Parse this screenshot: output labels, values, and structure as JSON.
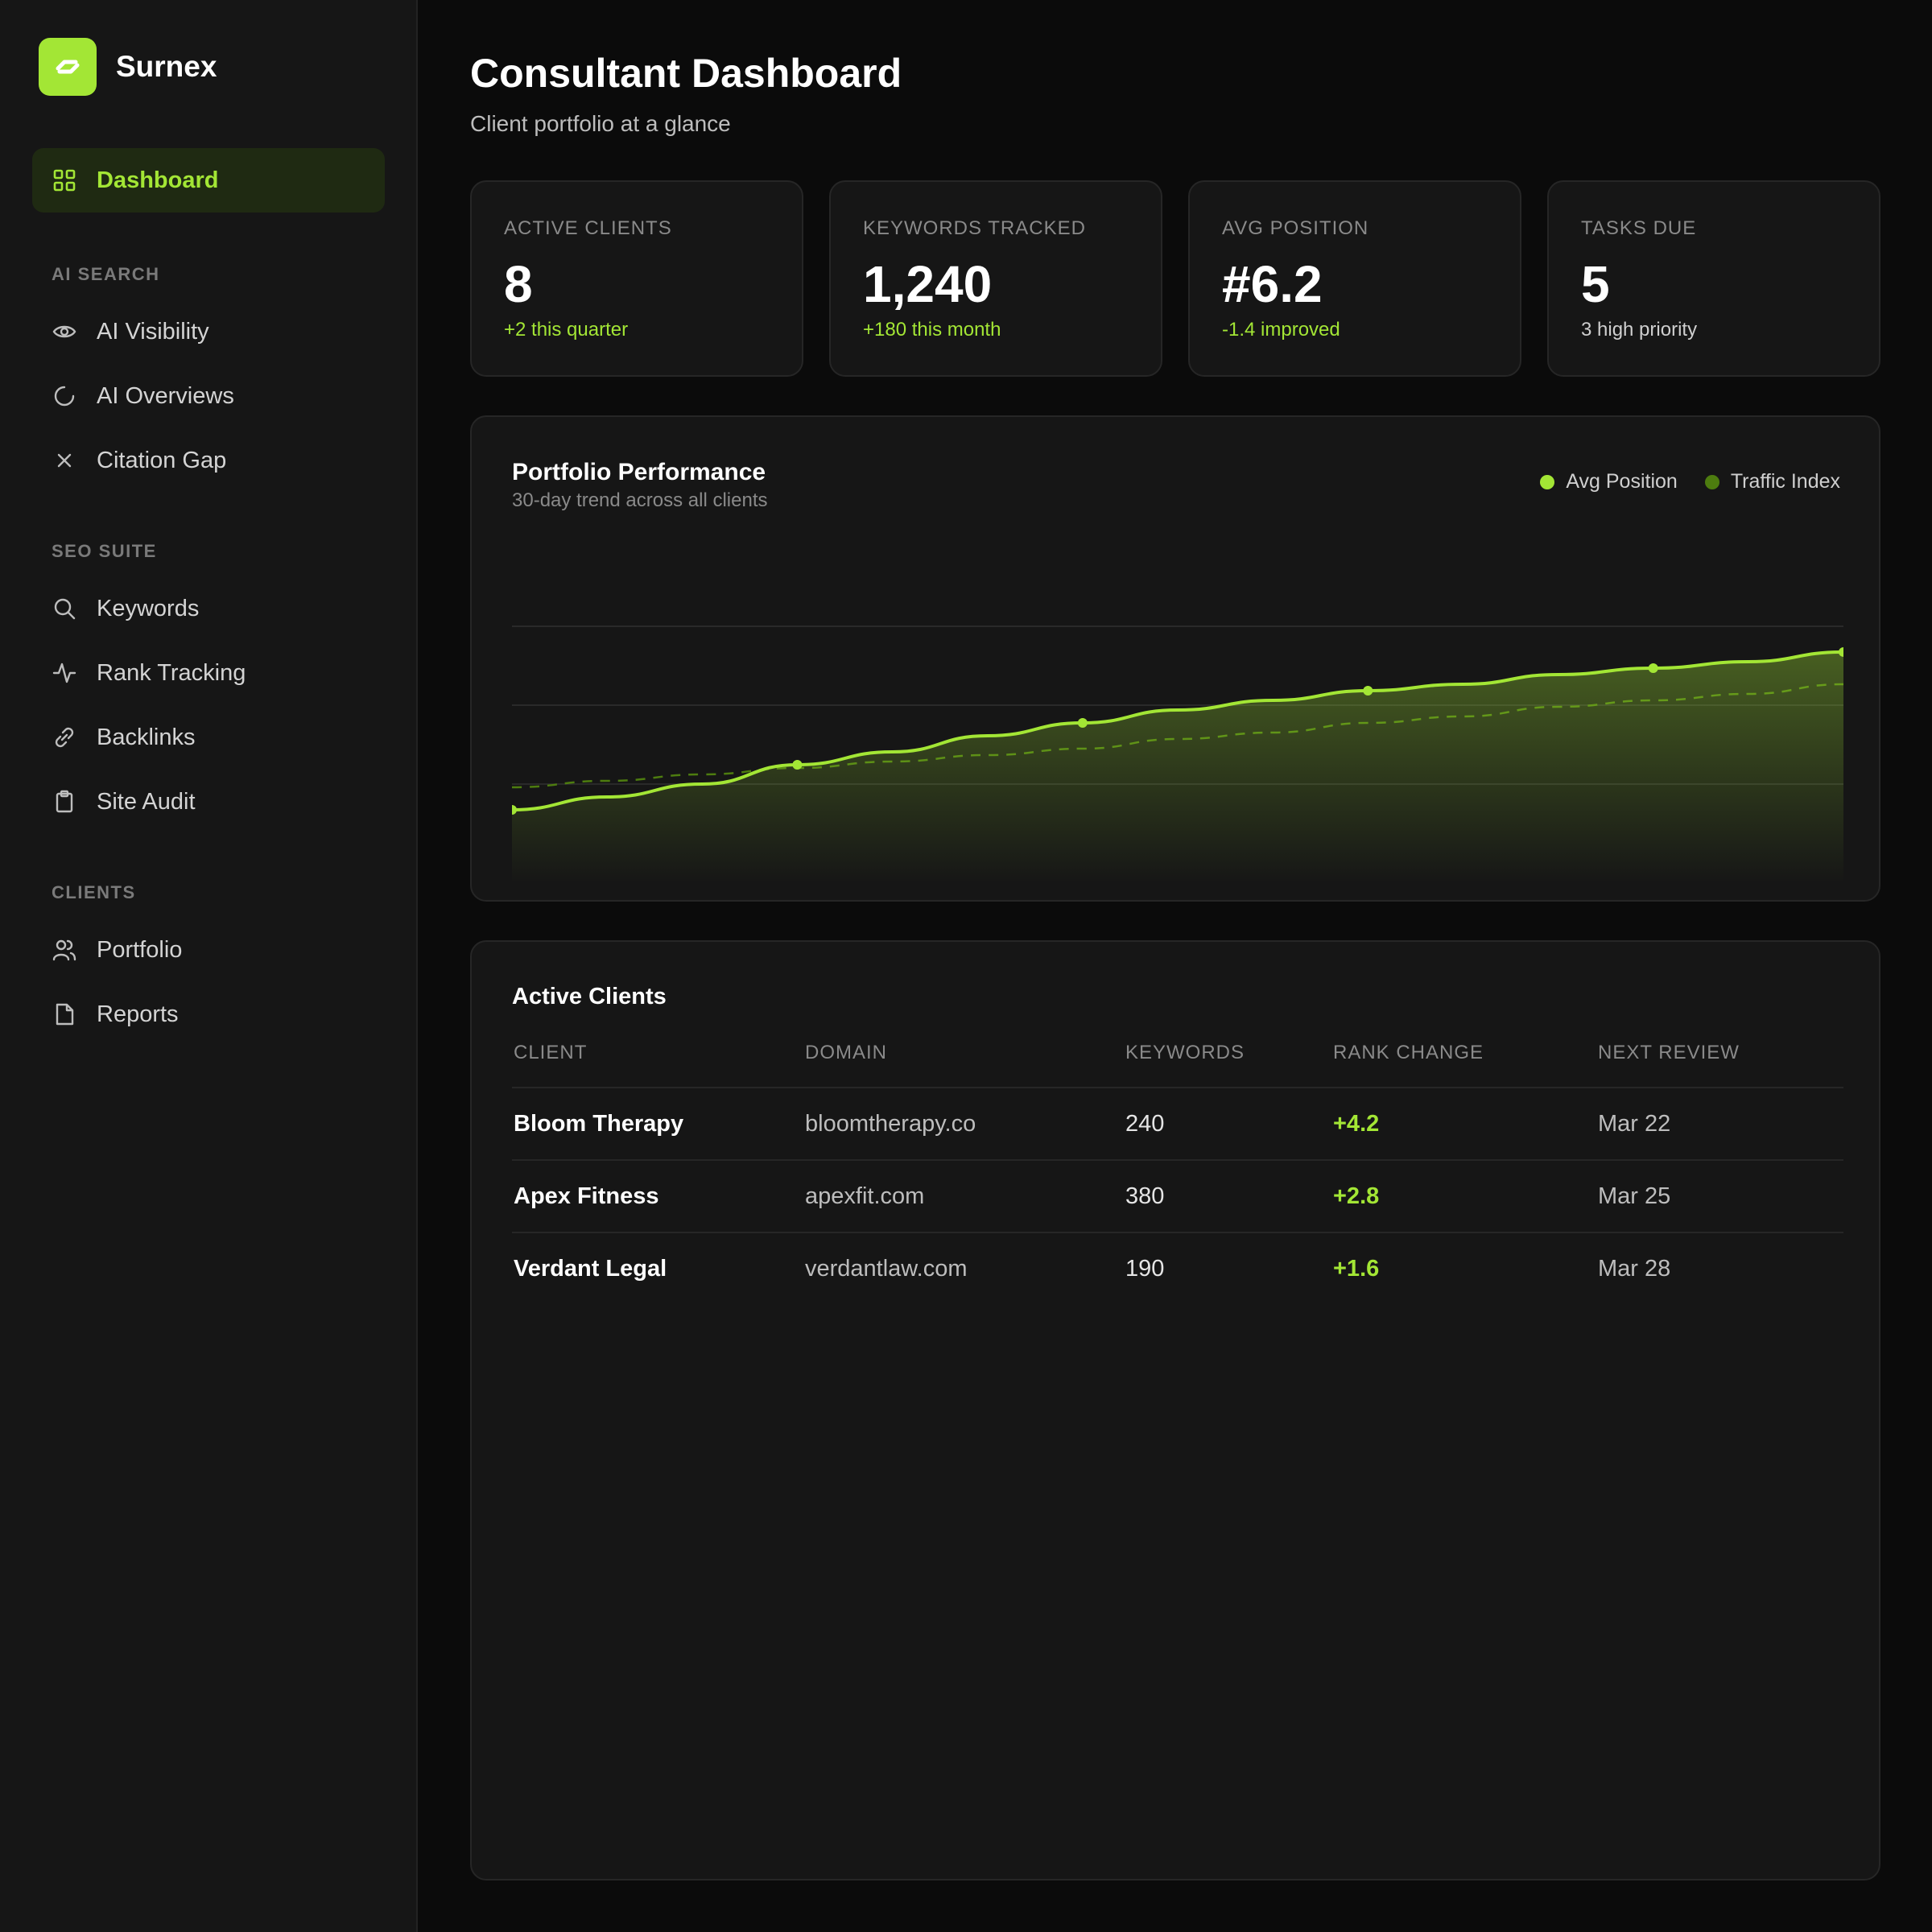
{
  "app": {
    "name": "Surnex"
  },
  "sidebar": {
    "active": {
      "label": "Dashboard",
      "icon": "grid-icon"
    },
    "sections": [
      {
        "title": "AI SEARCH",
        "items": [
          {
            "label": "AI Visibility",
            "icon": "eye-icon"
          },
          {
            "label": "AI Overviews",
            "icon": "loader-icon"
          },
          {
            "label": "Citation Gap",
            "icon": "close-icon"
          }
        ]
      },
      {
        "title": "SEO SUITE",
        "items": [
          {
            "label": "Keywords",
            "icon": "search-icon"
          },
          {
            "label": "Rank Tracking",
            "icon": "activity-icon"
          },
          {
            "label": "Backlinks",
            "icon": "link-icon"
          },
          {
            "label": "Site Audit",
            "icon": "clipboard-icon"
          }
        ]
      },
      {
        "title": "CLIENTS",
        "items": [
          {
            "label": "Portfolio",
            "icon": "users-icon"
          },
          {
            "label": "Reports",
            "icon": "file-icon"
          }
        ]
      }
    ]
  },
  "header": {
    "title": "Consultant Dashboard",
    "subtitle": "Client portfolio at a glance"
  },
  "stats": [
    {
      "label": "ACTIVE CLIENTS",
      "value": "8",
      "note": "+2 this quarter"
    },
    {
      "label": "KEYWORDS TRACKED",
      "value": "1,240",
      "note": "+180 this month"
    },
    {
      "label": "AVG POSITION",
      "value": "#6.2",
      "note": "-1.4 improved"
    },
    {
      "label": "TASKS DUE",
      "value": "5",
      "note": "3 high priority"
    }
  ],
  "performance": {
    "title": "Portfolio Performance",
    "subtitle": "30-day trend across all clients",
    "legend": [
      "Avg Position",
      "Traffic Index"
    ]
  },
  "chart_data": {
    "type": "line",
    "title": "Portfolio Performance",
    "subtitle": "30-day trend across all clients",
    "xlabel": "",
    "ylabel": "",
    "grid": true,
    "legend_position": "top-right",
    "ylim": [
      0,
      100
    ],
    "x": [
      0,
      1,
      2,
      3,
      4,
      5,
      6,
      7,
      8,
      9,
      10,
      11,
      12,
      13,
      14
    ],
    "series": [
      {
        "name": "Avg Position",
        "color": "#a3e635",
        "style": "solid",
        "area": true,
        "values": [
          18,
          22,
          26,
          32,
          36,
          41,
          45,
          49,
          52,
          55,
          57,
          60,
          62,
          64,
          67
        ],
        "markers": [
          0,
          3,
          6,
          9,
          12,
          14
        ]
      },
      {
        "name": "Traffic Index",
        "color": "#4d7c0f",
        "style": "dashed",
        "values": [
          25,
          27,
          29,
          31,
          33,
          35,
          37,
          40,
          42,
          45,
          47,
          50,
          52,
          54,
          57
        ]
      }
    ]
  },
  "clients_table": {
    "title": "Active Clients",
    "columns": [
      "CLIENT",
      "DOMAIN",
      "KEYWORDS",
      "RANK CHANGE",
      "NEXT REVIEW"
    ],
    "rows": [
      {
        "client": "Bloom Therapy",
        "domain": "bloomtherapy.co",
        "keywords": "240",
        "rank_change": "+4.2",
        "next_review": "Mar 22"
      },
      {
        "client": "Apex Fitness",
        "domain": "apexfit.com",
        "keywords": "380",
        "rank_change": "+2.8",
        "next_review": "Mar 25"
      },
      {
        "client": "Verdant Legal",
        "domain": "verdantlaw.com",
        "keywords": "190",
        "rank_change": "+1.6",
        "next_review": "Mar 28"
      }
    ]
  },
  "colors": {
    "accent": "#a3e635",
    "accent_dim": "#4d7c0f",
    "background": "#0b0b0b",
    "card": "#161616"
  }
}
